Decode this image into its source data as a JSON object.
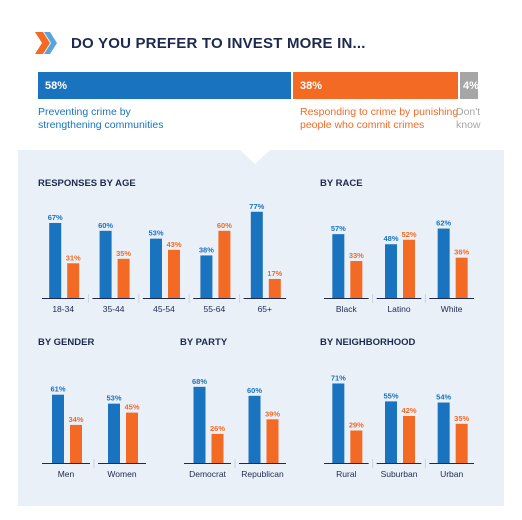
{
  "header": {
    "title": "DO YOU PREFER TO INVEST MORE IN...",
    "overall": [
      {
        "pct": 58,
        "label": "58%",
        "desc_lines": [
          "Preventing crime by",
          "strengthening communities"
        ],
        "color": "#1a73bf"
      },
      {
        "pct": 38,
        "label": "38%",
        "desc_lines": [
          "Responding to crime by punishing",
          "people who commit crimes"
        ],
        "color": "#f36a25"
      },
      {
        "pct": 4,
        "label": "4%",
        "desc_lines": [
          "Don't",
          "know"
        ],
        "color": "#a6a6a6"
      }
    ]
  },
  "colors": {
    "blue": "#1a73bf",
    "orange": "#f36a25",
    "gray": "#a6a6a6",
    "title": "#1d2a4d",
    "panel": "#eaf0f8"
  },
  "chart_data": [
    {
      "type": "bar",
      "title": "RESPONSES BY AGE",
      "categories": [
        "18-34",
        "35-44",
        "45-54",
        "55-64",
        "65+"
      ],
      "series": [
        {
          "values": [
            67,
            60,
            53,
            38,
            77
          ]
        },
        {
          "values": [
            31,
            35,
            43,
            60,
            17
          ]
        }
      ]
    },
    {
      "type": "bar",
      "title": "BY RACE",
      "categories": [
        "Black",
        "Latino",
        "White"
      ],
      "series": [
        {
          "values": [
            57,
            48,
            62
          ]
        },
        {
          "values": [
            33,
            52,
            36
          ]
        }
      ]
    },
    {
      "type": "bar",
      "title": "BY GENDER",
      "categories": [
        "Men",
        "Women"
      ],
      "series": [
        {
          "values": [
            61,
            53
          ]
        },
        {
          "values": [
            34,
            45
          ]
        }
      ]
    },
    {
      "type": "bar",
      "title": "BY PARTY",
      "categories": [
        "Democrat",
        "Republican"
      ],
      "series": [
        {
          "values": [
            68,
            60
          ]
        },
        {
          "values": [
            26,
            39
          ]
        }
      ]
    },
    {
      "type": "bar",
      "title": "BY NEIGHBORHOOD",
      "categories": [
        "Rural",
        "Suburban",
        "Urban"
      ],
      "series": [
        {
          "values": [
            71,
            55,
            54
          ]
        },
        {
          "values": [
            29,
            42,
            35
          ]
        }
      ]
    }
  ]
}
